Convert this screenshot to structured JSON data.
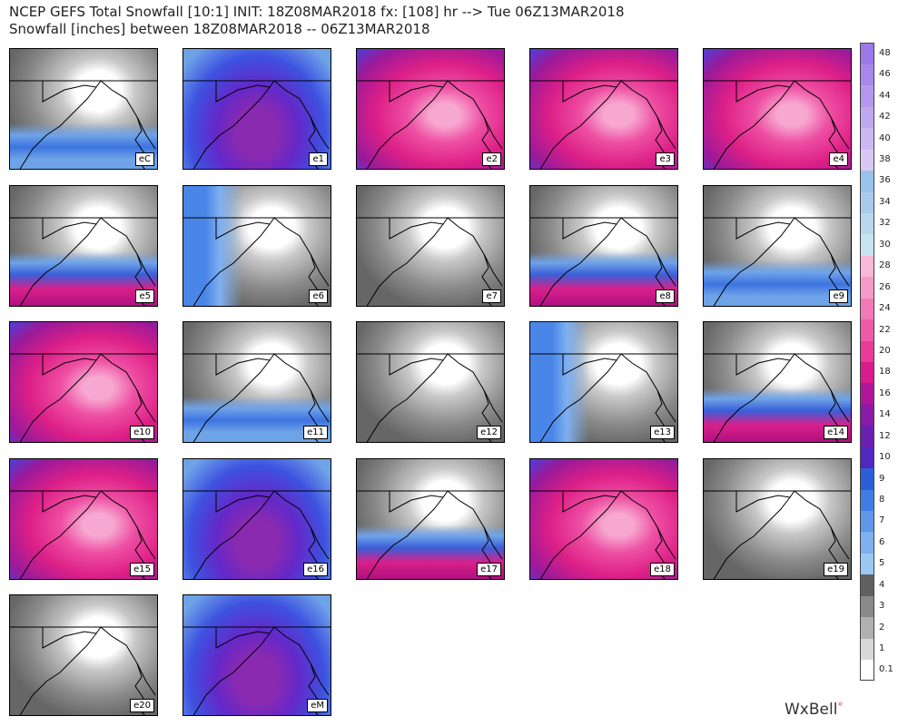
{
  "header": {
    "line1": "NCEP GEFS Total Snowfall [10:1] INIT: 18Z08MAR2018 fx: [108] hr --> Tue 06Z13MAR2018",
    "line2": "Snowfall [inches] between 18Z08MAR2018 -- 06Z13MAR2018"
  },
  "panels": [
    {
      "label": "eC"
    },
    {
      "label": "e1"
    },
    {
      "label": "e2"
    },
    {
      "label": "e3"
    },
    {
      "label": "e4"
    },
    {
      "label": "e5"
    },
    {
      "label": "e6"
    },
    {
      "label": "e7"
    },
    {
      "label": "e8"
    },
    {
      "label": "e9"
    },
    {
      "label": "e10"
    },
    {
      "label": "e11"
    },
    {
      "label": "e12"
    },
    {
      "label": "e13"
    },
    {
      "label": "e14"
    },
    {
      "label": "e15"
    },
    {
      "label": "e16"
    },
    {
      "label": "e17"
    },
    {
      "label": "e18"
    },
    {
      "label": "e19"
    },
    {
      "label": "e20"
    },
    {
      "label": "eM"
    }
  ],
  "colorbar": {
    "labels": [
      "0.1",
      "1",
      "2",
      "3",
      "4",
      "5",
      "6",
      "7",
      "8",
      "9",
      "10",
      "12",
      "14",
      "16",
      "18",
      "20",
      "22",
      "24",
      "26",
      "28",
      "30",
      "32",
      "34",
      "36",
      "38",
      "40",
      "42",
      "44",
      "46",
      "48"
    ]
  },
  "logo": "WxBell"
}
